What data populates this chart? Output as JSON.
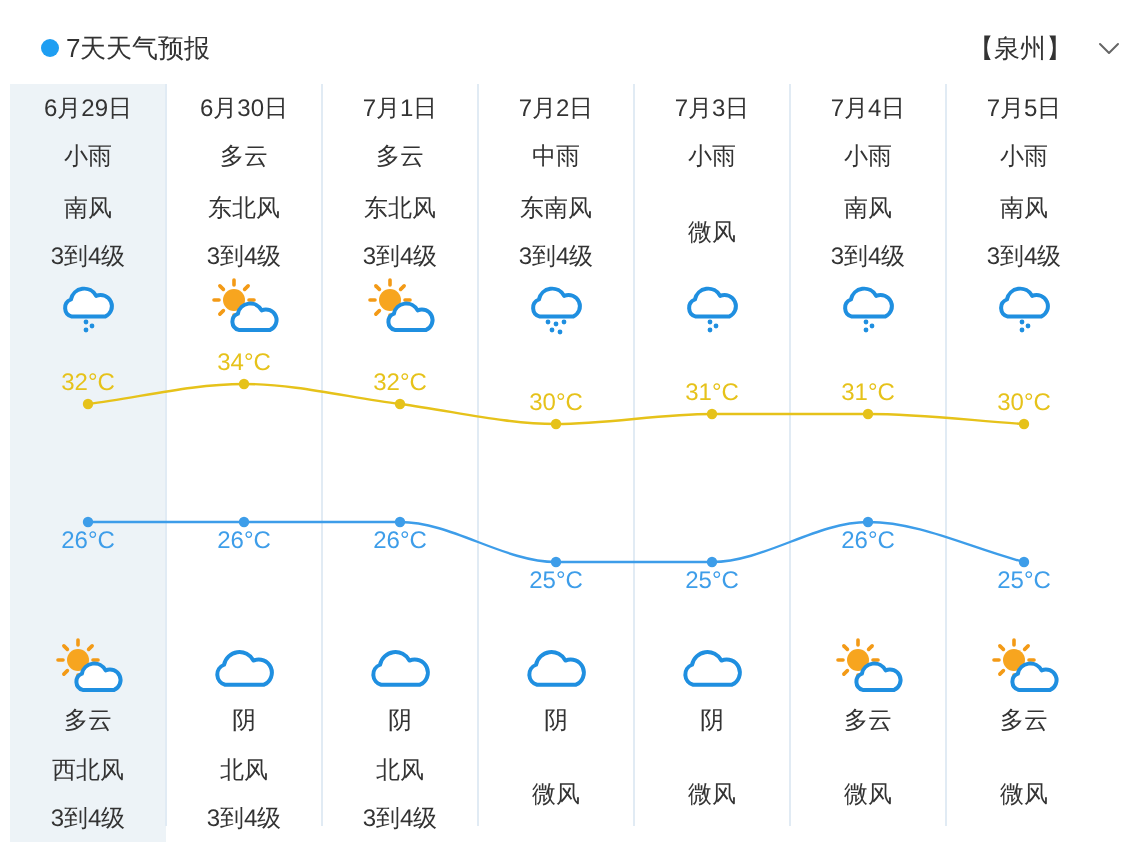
{
  "chart_data": [
    {
      "type": "line",
      "title": "7天天气预报",
      "subtitle": "【泉州】",
      "categories": [
        "6月29日",
        "6月30日",
        "7月1日",
        "7月2日",
        "7月3日",
        "7月4日",
        "7月5日"
      ],
      "series": [
        {
          "color": "#e6c21a",
          "values": [
            32,
            34,
            32,
            30,
            31,
            31,
            30
          ],
          "value_labels": [
            "32°C",
            "34°C",
            "32°C",
            "30°C",
            "31°C",
            "31°C",
            "30°C"
          ]
        }
      ],
      "marker": "circle",
      "grid": "x",
      "bands": [
        {
          "axis": "x",
          "from": "6月29日",
          "to": "6月29日",
          "color": "#edf3f7"
        }
      ],
      "annotations": [
        "小雨",
        "南风\n3到4级",
        "多云",
        "西北风\n3到4级",
        "多云",
        "东北风\n3到4级",
        "阴",
        "北风\n3到4级",
        "多云",
        "东北风\n3到4级",
        "阴",
        "北风\n3到4级",
        "中雨",
        "东南风\n3到4级",
        "阴",
        "微风",
        "小雨",
        "微风",
        "阴",
        "微风",
        "小雨",
        "南风\n3到4级",
        "多云",
        "微风",
        "小雨",
        "南风\n3到4级",
        "多云",
        "微风"
      ]
    },
    {
      "type": "line",
      "categories": [
        null,
        null,
        null,
        null,
        null,
        null,
        null
      ],
      "series": [
        {
          "color": "#3d9de9",
          "values": [
            26,
            26,
            26,
            25,
            25,
            26,
            25
          ],
          "value_labels": [
            "26°C",
            "26°C",
            "26°C",
            "25°C",
            "25°C",
            "26°C",
            "25°C"
          ]
        }
      ],
      "marker": "circle"
    }
  ]
}
